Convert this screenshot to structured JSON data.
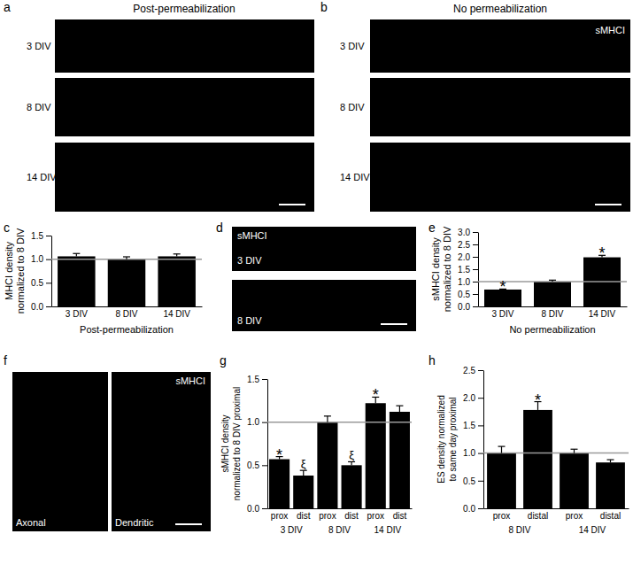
{
  "figure": {
    "panel_labels": [
      "a",
      "b",
      "c",
      "d",
      "e",
      "f",
      "g",
      "h"
    ],
    "a": {
      "title": "Post-permeabilization",
      "rows": [
        "3 DIV",
        "8 DIV",
        "14 DIV"
      ]
    },
    "b": {
      "title": "No permeabilization",
      "stain": "sMHCI",
      "rows": [
        "3 DIV",
        "8 DIV",
        "14 DIV"
      ]
    },
    "d": {
      "stain": "sMHCI",
      "rows": [
        "3 DIV",
        "8 DIV"
      ]
    },
    "f": {
      "stain": "sMHCI",
      "panels": [
        "Axonal",
        "Dendritic"
      ]
    }
  },
  "chart_data": [
    {
      "type": "bar",
      "categories": [
        "3 DIV",
        "8 DIV",
        "14 DIV"
      ],
      "values": [
        1.06,
        1.0,
        1.06
      ],
      "errors": [
        0.06,
        0.05,
        0.05
      ],
      "color": "#000000",
      "reference": 1,
      "ylim": [
        0,
        1.5
      ],
      "yticks": [
        {
          "value": 0,
          "label": "0.0"
        },
        0.5,
        {
          "value": 1,
          "label": "1.0"
        },
        1.5
      ],
      "ylabel": "MHCI density\nnormalized to 8 DIV",
      "xlabel": "Post-permeabilization"
    },
    {
      "type": "bar",
      "categories": [
        "3 DIV",
        "8 DIV",
        "14 DIV"
      ],
      "values": [
        0.68,
        1.0,
        1.98
      ],
      "errors": [
        0.02,
        0.06,
        0.08
      ],
      "annotations": [
        "*",
        null,
        "*"
      ],
      "color": "#000000",
      "reference": 1,
      "ylim": [
        0,
        3
      ],
      "yticks": [
        {
          "value": 0,
          "label": "0.0"
        },
        0.5,
        {
          "value": 1,
          "label": "1.0"
        },
        1.5,
        {
          "value": 2,
          "label": "2.0"
        },
        2.5,
        {
          "value": 3,
          "label": "3.0"
        }
      ],
      "ylabel": "sMHCI density\nnormalized to 8 DIV",
      "xlabel": "No permeabilization"
    },
    {
      "type": "bar",
      "categories": [
        "prox",
        "dist",
        "prox",
        "dist",
        "prox",
        "dist"
      ],
      "groups": [
        "3 DIV",
        "8 DIV",
        "14 DIV"
      ],
      "values": [
        0.57,
        0.38,
        1.0,
        0.5,
        1.22,
        1.12
      ],
      "errors": [
        0.03,
        0.06,
        0.07,
        0.04,
        0.07,
        0.07
      ],
      "annotations": [
        "*",
        "ξ",
        null,
        "ξ",
        "*",
        null
      ],
      "color": "#000000",
      "reference": 1,
      "ylim": [
        0,
        1.5
      ],
      "yticks": [
        {
          "value": 0,
          "label": "0.0"
        },
        0.5,
        {
          "value": 1,
          "label": "1.0"
        },
        1.5
      ],
      "ylabel": "sMHCI density\nnormalized to 8 DIV proximal"
    },
    {
      "type": "bar",
      "categories": [
        "prox",
        "distal",
        "prox",
        "distal"
      ],
      "groups": [
        "8 DIV",
        "14 DIV"
      ],
      "values": [
        1.0,
        1.78,
        1.0,
        0.83
      ],
      "errors": [
        0.12,
        0.15,
        0.07,
        0.05
      ],
      "annotations": [
        null,
        "*",
        null,
        null
      ],
      "color": "#000000",
      "reference": 1,
      "ylim": [
        0,
        2.5
      ],
      "yticks": [
        {
          "value": 0,
          "label": "0.0"
        },
        0.5,
        {
          "value": 1,
          "label": "1.0"
        },
        1.5,
        {
          "value": 2,
          "label": "2.0"
        },
        2.5
      ],
      "ylabel": "ES density normalized\nto same day proximal"
    }
  ]
}
